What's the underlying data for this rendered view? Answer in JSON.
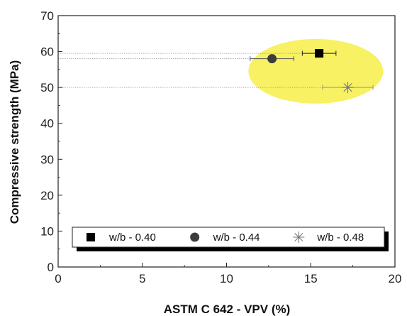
{
  "chart_data": {
    "type": "scatter",
    "xlabel": "ASTM C 642 - VPV (%)",
    "ylabel": "Compressive strength (MPa)",
    "xlim": [
      0,
      20
    ],
    "ylim": [
      0,
      70
    ],
    "xticks": [
      0,
      5,
      10,
      15,
      20
    ],
    "yticks": [
      0,
      10,
      20,
      30,
      40,
      50,
      60,
      70
    ],
    "grid": false,
    "legend_position": "bottom",
    "series": [
      {
        "name": "w/b - 0.40",
        "marker": "square",
        "x": 15.5,
        "y": 59.5,
        "xerr": 1.0
      },
      {
        "name": "w/b - 0.44",
        "marker": "circle",
        "x": 12.7,
        "y": 58.0,
        "xerr": 1.3
      },
      {
        "name": "w/b - 0.48",
        "marker": "asterisk",
        "x": 17.2,
        "y": 50.0,
        "xerr": 1.5
      }
    ],
    "highlight": {
      "shape": "ellipse",
      "color": "#f6f056",
      "x_range": [
        11.3,
        19.3
      ],
      "y_range": [
        45.5,
        63.5
      ]
    }
  }
}
